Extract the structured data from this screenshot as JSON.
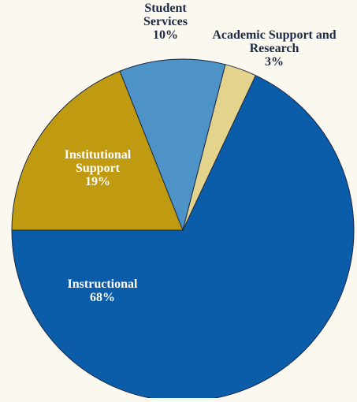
{
  "chart_data": {
    "type": "pie",
    "categories": [
      "Instructional",
      "Institutional Support",
      "Student Services",
      "Academic Support and Research"
    ],
    "values": [
      68,
      19,
      10,
      3
    ],
    "value_labels": [
      "68%",
      "19%",
      "10%",
      "3%"
    ],
    "colors": [
      "#0b5ca9",
      "#c09a10",
      "#4e93c8",
      "#e4d38c"
    ]
  }
}
